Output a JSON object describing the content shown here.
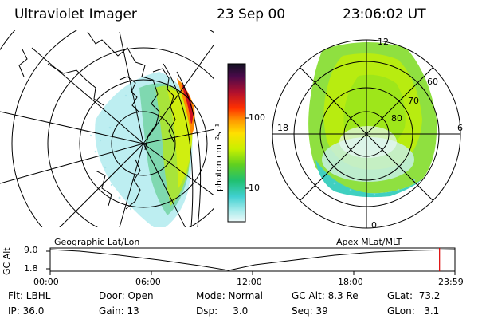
{
  "header": {
    "instrument": "Ultraviolet Imager",
    "date": "23 Sep 00",
    "time": "23:06:02 UT"
  },
  "colorbar": {
    "unit_label": "photon cm⁻²s⁻¹",
    "ticks": [
      "100",
      "10"
    ],
    "colors": [
      "#111122",
      "#3a0a3a",
      "#8b0a3a",
      "#c8102e",
      "#ff4000",
      "#ff8c00",
      "#ffd000",
      "#f0ff40",
      "#b0ee00",
      "#60d020",
      "#20c060",
      "#30d0c0",
      "#60e0e0",
      "#b0f0f0",
      "#e8f8f8"
    ]
  },
  "right_map": {
    "mlt_labels": {
      "top": "12",
      "left": "18",
      "right": "6",
      "bottom": "0"
    },
    "lat_labels": [
      "60",
      "70",
      "80"
    ]
  },
  "alt_plot": {
    "ylabel": "GC Alt",
    "y_ticks": [
      "9.0",
      "1.8"
    ],
    "left_caption": "Geographic Lat/Lon",
    "right_caption": "Apex MLat/MLT",
    "x_ticks": [
      "00:00",
      "06:00",
      "12:00",
      "18:00",
      "23:59"
    ],
    "current_time_fraction": 0.962,
    "marker_color": "#dd0000"
  },
  "info": {
    "flt": "Flt: LBHL",
    "door": "Door: Open",
    "mode": "Mode: Normal",
    "gc_alt": "GC Alt: 8.3 Re",
    "glat": "GLat:  73.2",
    "ip": "IP: 36.0",
    "gain": "Gain: 13",
    "dsp": "Dsp:     3.0",
    "seq": "Seq: 39",
    "glon": "GLon:   3.1"
  }
}
